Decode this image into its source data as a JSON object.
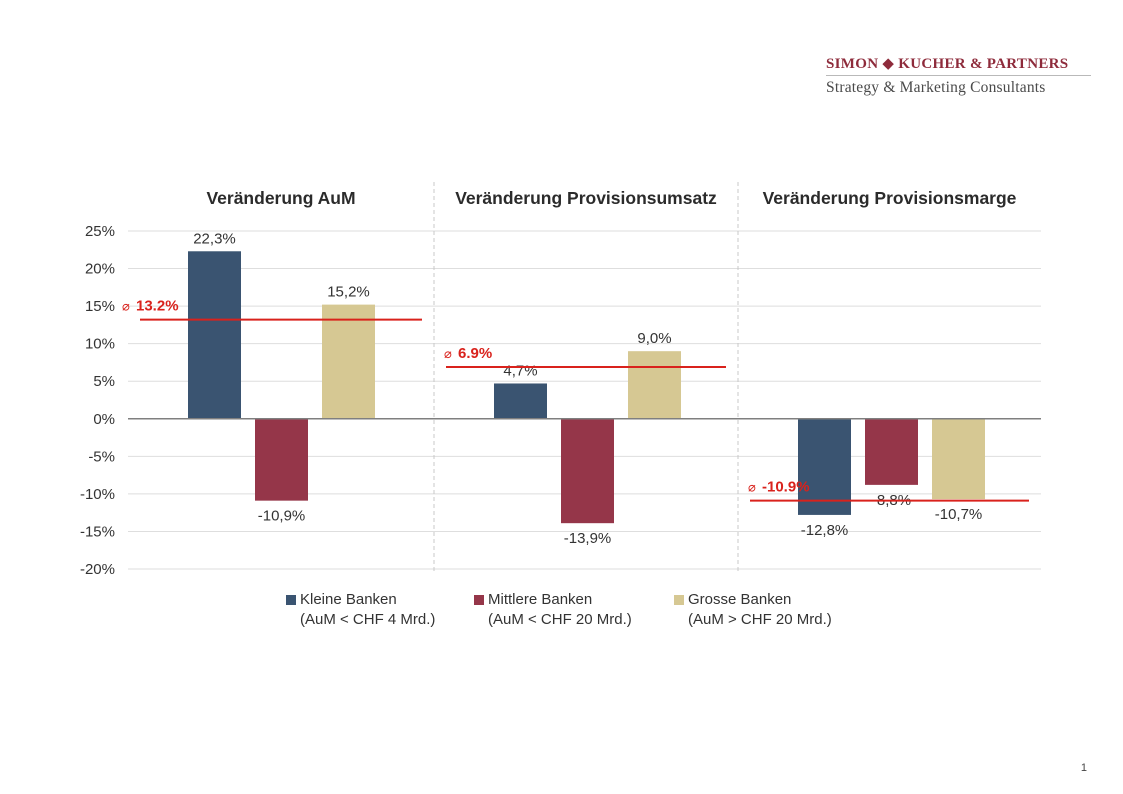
{
  "header": {
    "company": "SIMON ◆ KUCHER & PARTNERS",
    "tagline": "Strategy & Marketing Consultants"
  },
  "colors": {
    "brand": "#8e2b3b",
    "kleine": "#3a5471",
    "mittlere": "#953649",
    "grosse": "#d6c893",
    "average_line": "#d9221c",
    "axis": "#7f7f7f",
    "grid": "#dedede"
  },
  "legend": [
    {
      "line1": "Kleine Banken",
      "line2": "(AuM < CHF 4 Mrd.)",
      "color_key": "kleine"
    },
    {
      "line1": "Mittlere Banken",
      "line2": "(AuM < CHF 20 Mrd.)",
      "color_key": "mittlere"
    },
    {
      "line1": "Grosse Banken",
      "line2": "(AuM > CHF 20 Mrd.)",
      "color_key": "grosse"
    }
  ],
  "page_number": "1",
  "chart_data": {
    "type": "bar",
    "ylim": [
      -20,
      25
    ],
    "yticks": [
      25,
      20,
      15,
      10,
      5,
      0,
      -5,
      -10,
      -15,
      -20
    ],
    "ytick_labels": [
      "25%",
      "20%",
      "15%",
      "10%",
      "5%",
      "0%",
      "-5%",
      "-10%",
      "-15%",
      "-20%"
    ],
    "grid": true,
    "panels": [
      {
        "title": "Veränderung AuM",
        "values": [
          22.3,
          -10.9,
          15.2
        ],
        "labels": [
          "22,3%",
          "-10,9%",
          "15,2%"
        ],
        "average": 13.2,
        "average_label": "13.2%"
      },
      {
        "title": "Veränderung Provisionsumsatz",
        "values": [
          4.7,
          -13.9,
          9.0
        ],
        "labels": [
          "4,7%",
          "-13,9%",
          "9,0%"
        ],
        "average": 6.9,
        "average_label": "6.9%"
      },
      {
        "title": "Veränderung Provisionsmarge",
        "values": [
          -12.8,
          -8.8,
          -10.7
        ],
        "labels": [
          "-12,8%",
          "-8,8%",
          "-10,7%"
        ],
        "average": -10.9,
        "average_label": "-10.9%"
      }
    ],
    "series": [
      {
        "name": "Kleine Banken (AuM < CHF 4 Mrd.)"
      },
      {
        "name": "Mittlere Banken (AuM < CHF 20 Mrd.)"
      },
      {
        "name": "Grosse Banken (AuM > CHF 20 Mrd.)"
      }
    ],
    "average_symbol": "⌀"
  }
}
